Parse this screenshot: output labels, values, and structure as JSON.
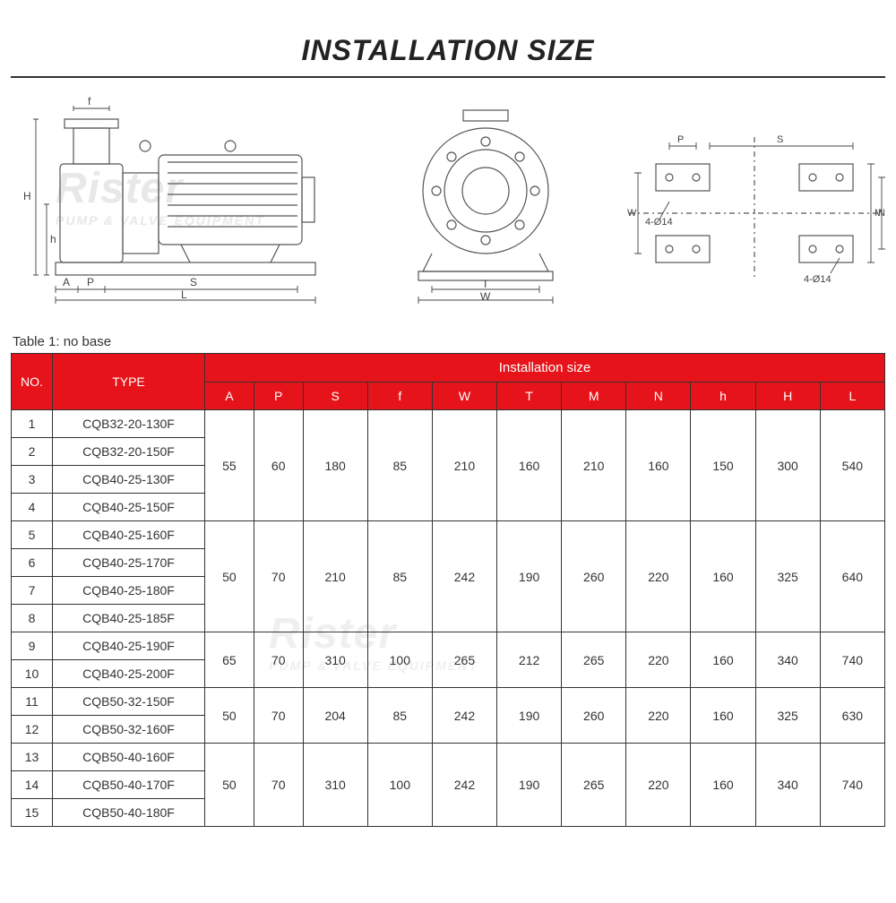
{
  "title": "INSTALLATION SIZE",
  "table_caption": "Table 1: no base",
  "watermark_main": "Rister",
  "watermark_sub": "PUMP & VALVE EQUIPMENT",
  "diagram": {
    "dim_labels": [
      "f",
      "H",
      "h",
      "A",
      "P",
      "S",
      "L",
      "T",
      "W",
      "P",
      "S",
      "W",
      "M",
      "N"
    ],
    "hole_label": "4-Ø14",
    "stroke": "#555",
    "fill": "#fafafa"
  },
  "table": {
    "header_bg": "#e6141a",
    "header_fg": "#ffffff",
    "border": "#333333",
    "col_no": "NO.",
    "col_type": "TYPE",
    "col_group": "Installation size",
    "dim_cols": [
      "A",
      "P",
      "S",
      "f",
      "W",
      "T",
      "M",
      "N",
      "h",
      "H",
      "L"
    ],
    "groups": [
      {
        "rows": [
          {
            "no": "1",
            "type": "CQB32-20-130F"
          },
          {
            "no": "2",
            "type": "CQB32-20-150F"
          },
          {
            "no": "3",
            "type": "CQB40-25-130F"
          },
          {
            "no": "4",
            "type": "CQB40-25-150F"
          }
        ],
        "values": {
          "A": "55",
          "P": "60",
          "S": "180",
          "f": "85",
          "W": "210",
          "T": "160",
          "M": "210",
          "N": "160",
          "h": "150",
          "H": "300",
          "L": "540"
        }
      },
      {
        "rows": [
          {
            "no": "5",
            "type": "CQB40-25-160F"
          },
          {
            "no": "6",
            "type": "CQB40-25-170F"
          },
          {
            "no": "7",
            "type": "CQB40-25-180F"
          },
          {
            "no": "8",
            "type": "CQB40-25-185F"
          }
        ],
        "values": {
          "A": "50",
          "P": "70",
          "S": "210",
          "f": "85",
          "W": "242",
          "T": "190",
          "M": "260",
          "N": "220",
          "h": "160",
          "H": "325",
          "L": "640"
        }
      },
      {
        "rows": [
          {
            "no": "9",
            "type": "CQB40-25-190F"
          },
          {
            "no": "10",
            "type": "CQB40-25-200F"
          }
        ],
        "values": {
          "A": "65",
          "P": "70",
          "S": "310",
          "f": "100",
          "W": "265",
          "T": "212",
          "M": "265",
          "N": "220",
          "h": "160",
          "H": "340",
          "L": "740"
        }
      },
      {
        "rows": [
          {
            "no": "11",
            "type": "CQB50-32-150F"
          },
          {
            "no": "12",
            "type": "CQB50-32-160F"
          }
        ],
        "values": {
          "A": "50",
          "P": "70",
          "S": "204",
          "f": "85",
          "W": "242",
          "T": "190",
          "M": "260",
          "N": "220",
          "h": "160",
          "H": "325",
          "L": "630"
        }
      },
      {
        "rows": [
          {
            "no": "13",
            "type": "CQB50-40-160F"
          },
          {
            "no": "14",
            "type": "CQB50-40-170F"
          },
          {
            "no": "15",
            "type": "CQB50-40-180F"
          }
        ],
        "values": {
          "A": "50",
          "P": "70",
          "S": "310",
          "f": "100",
          "W": "242",
          "T": "190",
          "M": "265",
          "N": "220",
          "h": "160",
          "H": "340",
          "L": "740"
        }
      }
    ]
  }
}
